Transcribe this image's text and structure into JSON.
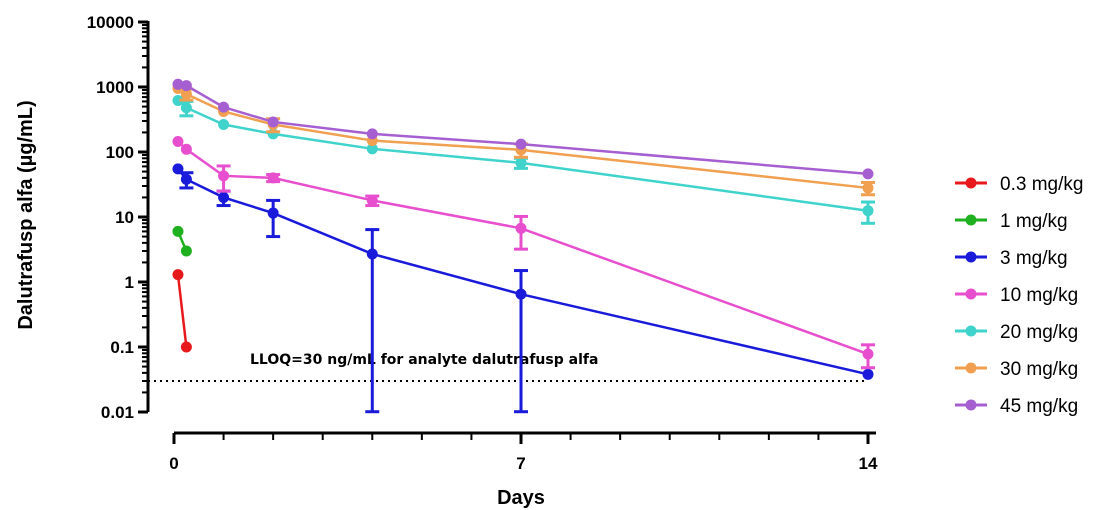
{
  "chart_data": {
    "type": "line",
    "xlabel": "Days",
    "ylabel": "Dalutrafusp alfa (µg/mL)",
    "yscale": "log",
    "xlim": [
      0,
      14
    ],
    "ylim": [
      0.01,
      10000
    ],
    "x_ticks": [
      0,
      7,
      14
    ],
    "y_ticks": [
      0.01,
      0.1,
      1,
      10,
      100,
      1000,
      10000
    ],
    "y_tick_labels": [
      "0.01",
      "0.1",
      "1",
      "10",
      "100",
      "1000",
      "10000"
    ],
    "x_tick_labels": [
      "0",
      "7",
      "14"
    ],
    "legend_position": "right",
    "grid": false,
    "reference_line": {
      "y": 0.03,
      "style": "dotted",
      "label": "LLOQ=30 ng/mL for analyte dalutrafusp alfa"
    },
    "series": [
      {
        "name": "0.3 mg/kg",
        "color": "#e8191c",
        "points": [
          {
            "x": 0.08,
            "y": 1.3
          },
          {
            "x": 0.25,
            "y": 0.1
          }
        ]
      },
      {
        "name": "1 mg/kg",
        "color": "#1fb01f",
        "points": [
          {
            "x": 0.08,
            "y": 6
          },
          {
            "x": 0.25,
            "y": 3
          }
        ]
      },
      {
        "name": "3 mg/kg",
        "color": "#1a1adb",
        "points": [
          {
            "x": 0.08,
            "y": 55,
            "err": 0
          },
          {
            "x": 0.25,
            "y": 38,
            "err": 10
          },
          {
            "x": 1,
            "y": 20,
            "err": 5
          },
          {
            "x": 2,
            "y": 11.5,
            "err": 6.5
          },
          {
            "x": 4,
            "y": 2.7,
            "err": 3.7
          },
          {
            "x": 7,
            "y": 0.65,
            "err": 0.85
          },
          {
            "x": 14,
            "y": 0.038,
            "err": 0
          }
        ]
      },
      {
        "name": "10 mg/kg",
        "color": "#e84fcf",
        "points": [
          {
            "x": 0.08,
            "y": 145,
            "err": 0
          },
          {
            "x": 0.25,
            "y": 110,
            "err": 0
          },
          {
            "x": 1,
            "y": 43,
            "err": 18
          },
          {
            "x": 2,
            "y": 40,
            "err": 5
          },
          {
            "x": 4,
            "y": 18,
            "err": 3
          },
          {
            "x": 7,
            "y": 6.7,
            "err": 3.5
          },
          {
            "x": 14,
            "y": 0.078,
            "err": 0.03
          }
        ]
      },
      {
        "name": "20 mg/kg",
        "color": "#3fd3cb",
        "points": [
          {
            "x": 0.08,
            "y": 620,
            "err": 0
          },
          {
            "x": 0.25,
            "y": 480,
            "err": 120
          },
          {
            "x": 1,
            "y": 265,
            "err": 0
          },
          {
            "x": 2,
            "y": 190,
            "err": 0
          },
          {
            "x": 4,
            "y": 112,
            "err": 0
          },
          {
            "x": 7,
            "y": 68,
            "err": 12
          },
          {
            "x": 14,
            "y": 12.5,
            "err": 4.5
          }
        ]
      },
      {
        "name": "30 mg/kg",
        "color": "#f0a050",
        "points": [
          {
            "x": 0.08,
            "y": 950,
            "err": 0
          },
          {
            "x": 0.25,
            "y": 780,
            "err": 150
          },
          {
            "x": 1,
            "y": 420,
            "err": 0
          },
          {
            "x": 2,
            "y": 265,
            "err": 60
          },
          {
            "x": 4,
            "y": 150,
            "err": 0
          },
          {
            "x": 7,
            "y": 108,
            "err": 25
          },
          {
            "x": 14,
            "y": 28,
            "err": 6
          }
        ]
      },
      {
        "name": "45 mg/kg",
        "color": "#a65fd1",
        "points": [
          {
            "x": 0.08,
            "y": 1100,
            "err": 0
          },
          {
            "x": 0.25,
            "y": 1050,
            "err": 0
          },
          {
            "x": 1,
            "y": 490,
            "err": 0
          },
          {
            "x": 2,
            "y": 290,
            "err": 0
          },
          {
            "x": 4,
            "y": 190,
            "err": 0
          },
          {
            "x": 7,
            "y": 132,
            "err": 0
          },
          {
            "x": 14,
            "y": 46,
            "err": 0
          }
        ]
      }
    ]
  }
}
